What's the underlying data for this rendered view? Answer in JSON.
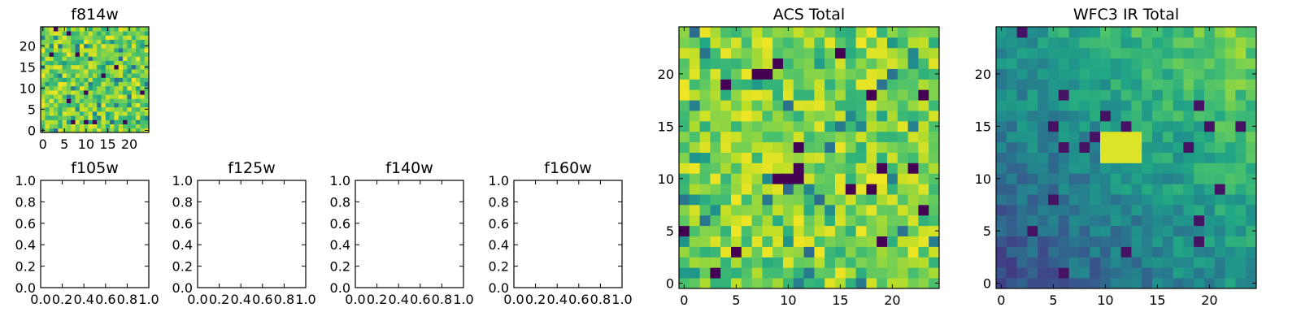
{
  "colors": {
    "colormap": "viridis",
    "axis": "#000000",
    "background": "#ffffff"
  },
  "chart_data": [
    {
      "id": "f814w",
      "type": "heatmap",
      "title": "f814w",
      "size": 25,
      "x_ticks": [
        "0",
        "5",
        "10",
        "15",
        "20"
      ],
      "y_ticks": [
        "0",
        "5",
        "10",
        "15",
        "20"
      ],
      "xlim": [
        -0.5,
        24.5
      ],
      "ylim": [
        -0.5,
        24.5
      ],
      "seed": 7,
      "values": "mostly high (green-yellow), scattered dark pixels"
    },
    {
      "id": "f105w",
      "type": "empty",
      "title": "f105w",
      "x_ticks": [
        "0.0",
        "0.2",
        "0.4",
        "0.6",
        "0.8",
        "1.0"
      ],
      "y_ticks": [
        "0.0",
        "0.2",
        "0.4",
        "0.6",
        "0.8",
        "1.0"
      ],
      "xlim": [
        0,
        1
      ],
      "ylim": [
        0,
        1
      ]
    },
    {
      "id": "f125w",
      "type": "empty",
      "title": "f125w",
      "x_ticks": [
        "0.0",
        "0.2",
        "0.4",
        "0.6",
        "0.8",
        "1.0"
      ],
      "y_ticks": [
        "0.0",
        "0.2",
        "0.4",
        "0.6",
        "0.8",
        "1.0"
      ],
      "xlim": [
        0,
        1
      ],
      "ylim": [
        0,
        1
      ]
    },
    {
      "id": "f140w",
      "type": "empty",
      "title": "f140w",
      "x_ticks": [
        "0.0",
        "0.2",
        "0.4",
        "0.6",
        "0.8",
        "1.0"
      ],
      "y_ticks": [
        "0.0",
        "0.2",
        "0.4",
        "0.6",
        "0.8",
        "1.0"
      ],
      "xlim": [
        0,
        1
      ],
      "ylim": [
        0,
        1
      ]
    },
    {
      "id": "f160w",
      "type": "empty",
      "title": "f160w",
      "x_ticks": [
        "0.0",
        "0.2",
        "0.4",
        "0.6",
        "0.8",
        "1.0"
      ],
      "y_ticks": [
        "0.0",
        "0.2",
        "0.4",
        "0.6",
        "0.8",
        "1.0"
      ],
      "xlim": [
        0,
        1
      ],
      "ylim": [
        0,
        1
      ]
    },
    {
      "id": "acs_total",
      "type": "heatmap",
      "title": "ACS Total",
      "size": 25,
      "x_ticks": [
        "0",
        "5",
        "10",
        "15",
        "20"
      ],
      "y_ticks": [
        "0",
        "5",
        "10",
        "15",
        "20"
      ],
      "xlim": [
        -0.5,
        24.5
      ],
      "ylim": [
        -0.5,
        24.5
      ],
      "seed": 11,
      "values": "mostly high (green-yellow), few dark pixels near (10,11) and (18,9)"
    },
    {
      "id": "wfc3_ir_total",
      "type": "heatmap",
      "title": "WFC3 IR Total",
      "size": 25,
      "x_ticks": [
        "0",
        "5",
        "10",
        "15",
        "20"
      ],
      "y_ticks": [
        "0",
        "5",
        "10",
        "15",
        "20"
      ],
      "xlim": [
        -0.5,
        24.5
      ],
      "ylim": [
        -0.5,
        24.5
      ],
      "seed": 23,
      "values": "gradient: low (blue-purple) at bottom-left rising to high (yellow) at top-right"
    }
  ]
}
